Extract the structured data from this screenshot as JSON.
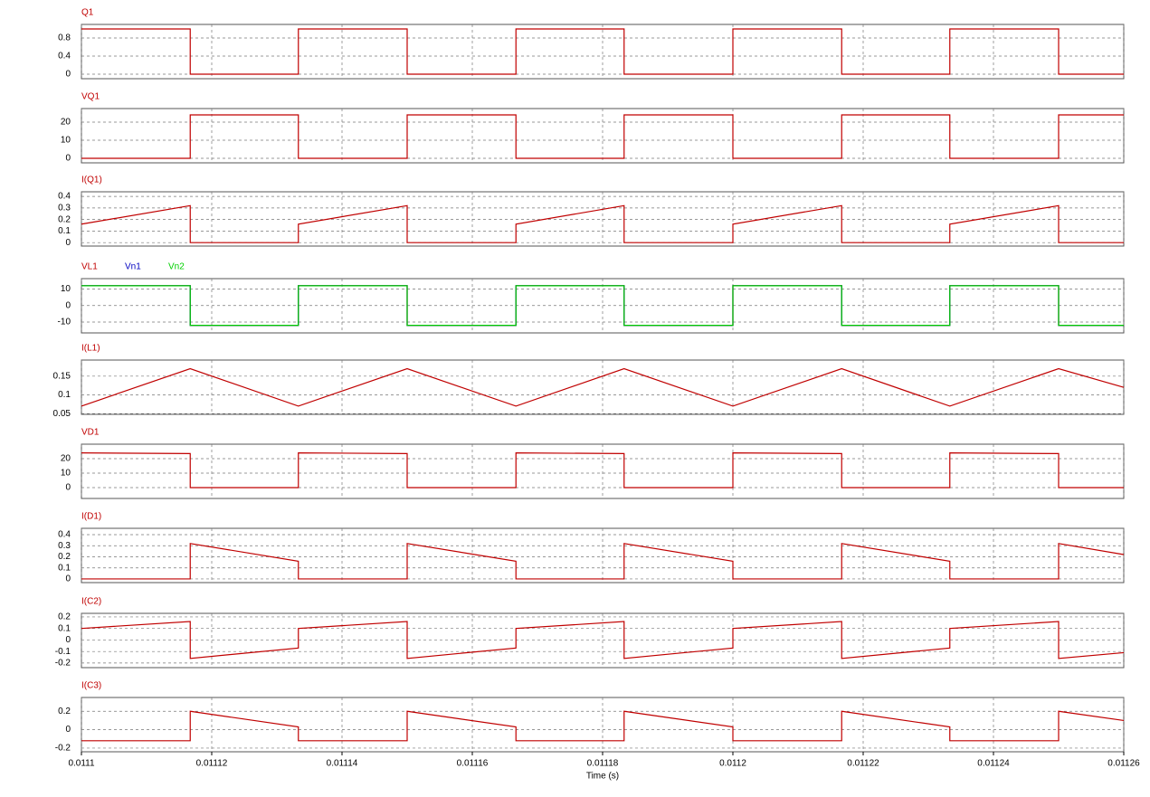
{
  "chart_data": [
    {
      "type": "line",
      "x": [
        0.0111,
        0.0111167,
        0.0111167,
        0.0111333,
        0.0111333,
        0.01115,
        0.01115,
        0.0111667,
        0.0111667,
        0.0111833,
        0.0111833,
        0.0112,
        0.0112,
        0.0112167,
        0.0112167,
        0.0112333,
        0.0112333,
        0.01125,
        0.01125,
        0.01126
      ],
      "series": [
        {
          "name": "Q1",
          "color": "#c00000",
          "values": [
            1,
            1,
            0,
            0,
            1,
            1,
            0,
            0,
            1,
            1,
            0,
            0,
            1,
            1,
            0,
            0,
            1,
            1,
            0,
            0
          ]
        }
      ],
      "xlim": [
        0.0111,
        0.01126
      ],
      "xticks": [
        0.0111,
        0.01112,
        0.01114,
        0.01116,
        0.01118,
        0.0112,
        0.01122,
        0.01124,
        0.01126
      ],
      "ylim": [
        -0.1,
        1.1
      ],
      "yticks": [
        0,
        0.4,
        0.8
      ],
      "grid": true
    },
    {
      "type": "line",
      "x": [
        0.0111,
        0.0111167,
        0.0111167,
        0.0111333,
        0.0111333,
        0.01115,
        0.01115,
        0.0111667,
        0.0111667,
        0.0111833,
        0.0111833,
        0.0112,
        0.0112,
        0.0112167,
        0.0112167,
        0.0112333,
        0.0112333,
        0.01125,
        0.01125,
        0.01126
      ],
      "series": [
        {
          "name": "VQ1",
          "color": "#c00000",
          "values": [
            0,
            0,
            24,
            24,
            0,
            0,
            24,
            24,
            0,
            0,
            24,
            24,
            0,
            0,
            24,
            24,
            0,
            0,
            24,
            24
          ]
        }
      ],
      "xlim": [
        0.0111,
        0.01126
      ],
      "xticks": [
        0.0111,
        0.01112,
        0.01114,
        0.01116,
        0.01118,
        0.0112,
        0.01122,
        0.01124,
        0.01126
      ],
      "ylim": [
        -2.5,
        27.5
      ],
      "yticks": [
        0,
        10,
        20
      ],
      "grid": true
    },
    {
      "type": "line",
      "x": [
        0.0111,
        0.0111167,
        0.0111167,
        0.0111333,
        0.0111333,
        0.01115,
        0.01115,
        0.0111667,
        0.0111667,
        0.0111833,
        0.0111833,
        0.0112,
        0.0112,
        0.0112167,
        0.0112167,
        0.0112333,
        0.0112333,
        0.01125,
        0.01125,
        0.01126
      ],
      "series": [
        {
          "name": "I(Q1)",
          "color": "#c00000",
          "values": [
            0.16,
            0.32,
            0,
            0,
            0.16,
            0.32,
            0,
            0,
            0.16,
            0.32,
            0,
            0,
            0.16,
            0.32,
            0,
            0,
            0.16,
            0.32,
            0,
            0
          ]
        }
      ],
      "xlim": [
        0.0111,
        0.01126
      ],
      "xticks": [
        0.0111,
        0.01112,
        0.01114,
        0.01116,
        0.01118,
        0.0112,
        0.01122,
        0.01124,
        0.01126
      ],
      "ylim": [
        -0.03,
        0.44
      ],
      "yticks": [
        0,
        0.1,
        0.2,
        0.3,
        0.4
      ],
      "grid": true
    },
    {
      "type": "line",
      "x": [
        0.0111,
        0.0111167,
        0.0111167,
        0.0111333,
        0.0111333,
        0.01115,
        0.01115,
        0.0111667,
        0.0111667,
        0.0111833,
        0.0111833,
        0.0112,
        0.0112,
        0.0112167,
        0.0112167,
        0.0112333,
        0.0112333,
        0.01125,
        0.01125,
        0.01126
      ],
      "series": [
        {
          "name": "VL1",
          "color": "#c00000",
          "values": [
            12,
            12,
            -12,
            -12,
            12,
            12,
            -12,
            -12,
            12,
            12,
            -12,
            -12,
            12,
            12,
            -12,
            -12,
            12,
            12,
            -12,
            -12
          ]
        },
        {
          "name": "Vn1",
          "color": "#0000c0",
          "values": [
            12,
            12,
            -12,
            -12,
            12,
            12,
            -12,
            -12,
            12,
            12,
            -12,
            -12,
            12,
            12,
            -12,
            -12,
            12,
            12,
            -12,
            -12
          ]
        },
        {
          "name": "Vn2",
          "color": "#00d000",
          "values": [
            12,
            12,
            -12,
            -12,
            12,
            12,
            -12,
            -12,
            12,
            12,
            -12,
            -12,
            12,
            12,
            -12,
            -12,
            12,
            12,
            -12,
            -12
          ]
        }
      ],
      "xlim": [
        0.0111,
        0.01126
      ],
      "xticks": [
        0.0111,
        0.01112,
        0.01114,
        0.01116,
        0.01118,
        0.0112,
        0.01122,
        0.01124,
        0.01126
      ],
      "ylim": [
        -16.6,
        16.3
      ],
      "yticks": [
        -10,
        0,
        10
      ],
      "grid": true
    },
    {
      "type": "line",
      "x": [
        0.0111,
        0.0111167,
        0.0111333,
        0.01115,
        0.0111667,
        0.0111833,
        0.0112,
        0.0112167,
        0.0112333,
        0.01125,
        0.01126
      ],
      "series": [
        {
          "name": "I(L1)",
          "color": "#c00000",
          "values": [
            0.07,
            0.17,
            0.07,
            0.17,
            0.07,
            0.17,
            0.07,
            0.17,
            0.07,
            0.17,
            0.12
          ]
        }
      ],
      "xlim": [
        0.0111,
        0.01126
      ],
      "xticks": [
        0.0111,
        0.01112,
        0.01114,
        0.01116,
        0.01118,
        0.0112,
        0.01122,
        0.01124,
        0.01126
      ],
      "ylim": [
        0.048,
        0.193
      ],
      "yticks": [
        0.05,
        0.1,
        0.15
      ],
      "grid": true
    },
    {
      "type": "line",
      "x": [
        0.0111,
        0.0111167,
        0.0111167,
        0.0111333,
        0.0111333,
        0.01115,
        0.01115,
        0.0111667,
        0.0111667,
        0.0111833,
        0.0111833,
        0.0112,
        0.0112,
        0.0112167,
        0.0112167,
        0.0112333,
        0.0112333,
        0.01125,
        0.01125,
        0.01126
      ],
      "series": [
        {
          "name": "VD1",
          "color": "#c00000",
          "values": [
            24,
            23.5,
            0,
            0,
            24,
            23.5,
            0,
            0,
            24,
            23.5,
            0,
            0,
            24,
            23.5,
            0,
            0,
            24,
            23.5,
            0,
            0
          ]
        }
      ],
      "xlim": [
        0.0111,
        0.01126
      ],
      "xticks": [
        0.0111,
        0.01112,
        0.01114,
        0.01116,
        0.01118,
        0.0112,
        0.01122,
        0.01124,
        0.01126
      ],
      "ylim": [
        -7.5,
        30
      ],
      "yticks": [
        0,
        10,
        20
      ],
      "grid": true
    },
    {
      "type": "line",
      "x": [
        0.0111,
        0.0111167,
        0.0111167,
        0.0111333,
        0.0111333,
        0.01115,
        0.01115,
        0.0111667,
        0.0111667,
        0.0111833,
        0.0111833,
        0.0112,
        0.0112,
        0.0112167,
        0.0112167,
        0.0112333,
        0.0112333,
        0.01125,
        0.01125,
        0.01126
      ],
      "series": [
        {
          "name": "I(D1)",
          "color": "#c00000",
          "values": [
            0,
            0,
            0.32,
            0.16,
            0,
            0,
            0.32,
            0.16,
            0,
            0,
            0.32,
            0.16,
            0,
            0,
            0.32,
            0.16,
            0,
            0,
            0.32,
            0.22
          ]
        }
      ],
      "xlim": [
        0.0111,
        0.01126
      ],
      "xticks": [
        0.0111,
        0.01112,
        0.01114,
        0.01116,
        0.01118,
        0.0112,
        0.01122,
        0.01124,
        0.01126
      ],
      "ylim": [
        -0.033,
        0.457
      ],
      "yticks": [
        0,
        0.1,
        0.2,
        0.3,
        0.4
      ],
      "grid": true
    },
    {
      "type": "line",
      "x": [
        0.0111,
        0.0111167,
        0.0111167,
        0.0111333,
        0.0111333,
        0.01115,
        0.01115,
        0.0111667,
        0.0111667,
        0.0111833,
        0.0111833,
        0.0112,
        0.0112,
        0.0112167,
        0.0112167,
        0.0112333,
        0.0112333,
        0.01125,
        0.01125,
        0.01126
      ],
      "series": [
        {
          "name": "I(C2)",
          "color": "#c00000",
          "values": [
            0.1,
            0.16,
            -0.16,
            -0.07,
            0.1,
            0.16,
            -0.16,
            -0.07,
            0.1,
            0.16,
            -0.16,
            -0.07,
            0.1,
            0.16,
            -0.16,
            -0.07,
            0.1,
            0.16,
            -0.16,
            -0.11
          ]
        }
      ],
      "xlim": [
        0.0111,
        0.01126
      ],
      "xticks": [
        0.0111,
        0.01112,
        0.01114,
        0.01116,
        0.01118,
        0.0112,
        0.01122,
        0.01124,
        0.01126
      ],
      "ylim": [
        -0.24,
        0.231
      ],
      "yticks": [
        -0.2,
        -0.1,
        0,
        0.1,
        0.2
      ],
      "grid": true
    },
    {
      "type": "line",
      "x": [
        0.0111,
        0.0111167,
        0.0111167,
        0.0111333,
        0.0111333,
        0.01115,
        0.01115,
        0.0111667,
        0.0111667,
        0.0111833,
        0.0111833,
        0.0112,
        0.0112,
        0.0112167,
        0.0112167,
        0.0112333,
        0.0112333,
        0.01125,
        0.01125,
        0.01126
      ],
      "series": [
        {
          "name": "I(C3)",
          "color": "#c00000",
          "values": [
            -0.12,
            -0.12,
            0.2,
            0.03,
            -0.12,
            -0.12,
            0.2,
            0.03,
            -0.12,
            -0.12,
            0.2,
            0.03,
            -0.12,
            -0.12,
            0.2,
            0.03,
            -0.12,
            -0.12,
            0.2,
            0.1
          ]
        }
      ],
      "xlim": [
        0.0111,
        0.01126
      ],
      "xticks": [
        0.0111,
        0.01112,
        0.01114,
        0.01116,
        0.01118,
        0.0112,
        0.01122,
        0.01124,
        0.01126
      ],
      "ylim": [
        -0.24,
        0.35
      ],
      "yticks": [
        -0.2,
        0,
        0.2
      ],
      "grid": true,
      "xlabel": "Time (s)"
    }
  ]
}
